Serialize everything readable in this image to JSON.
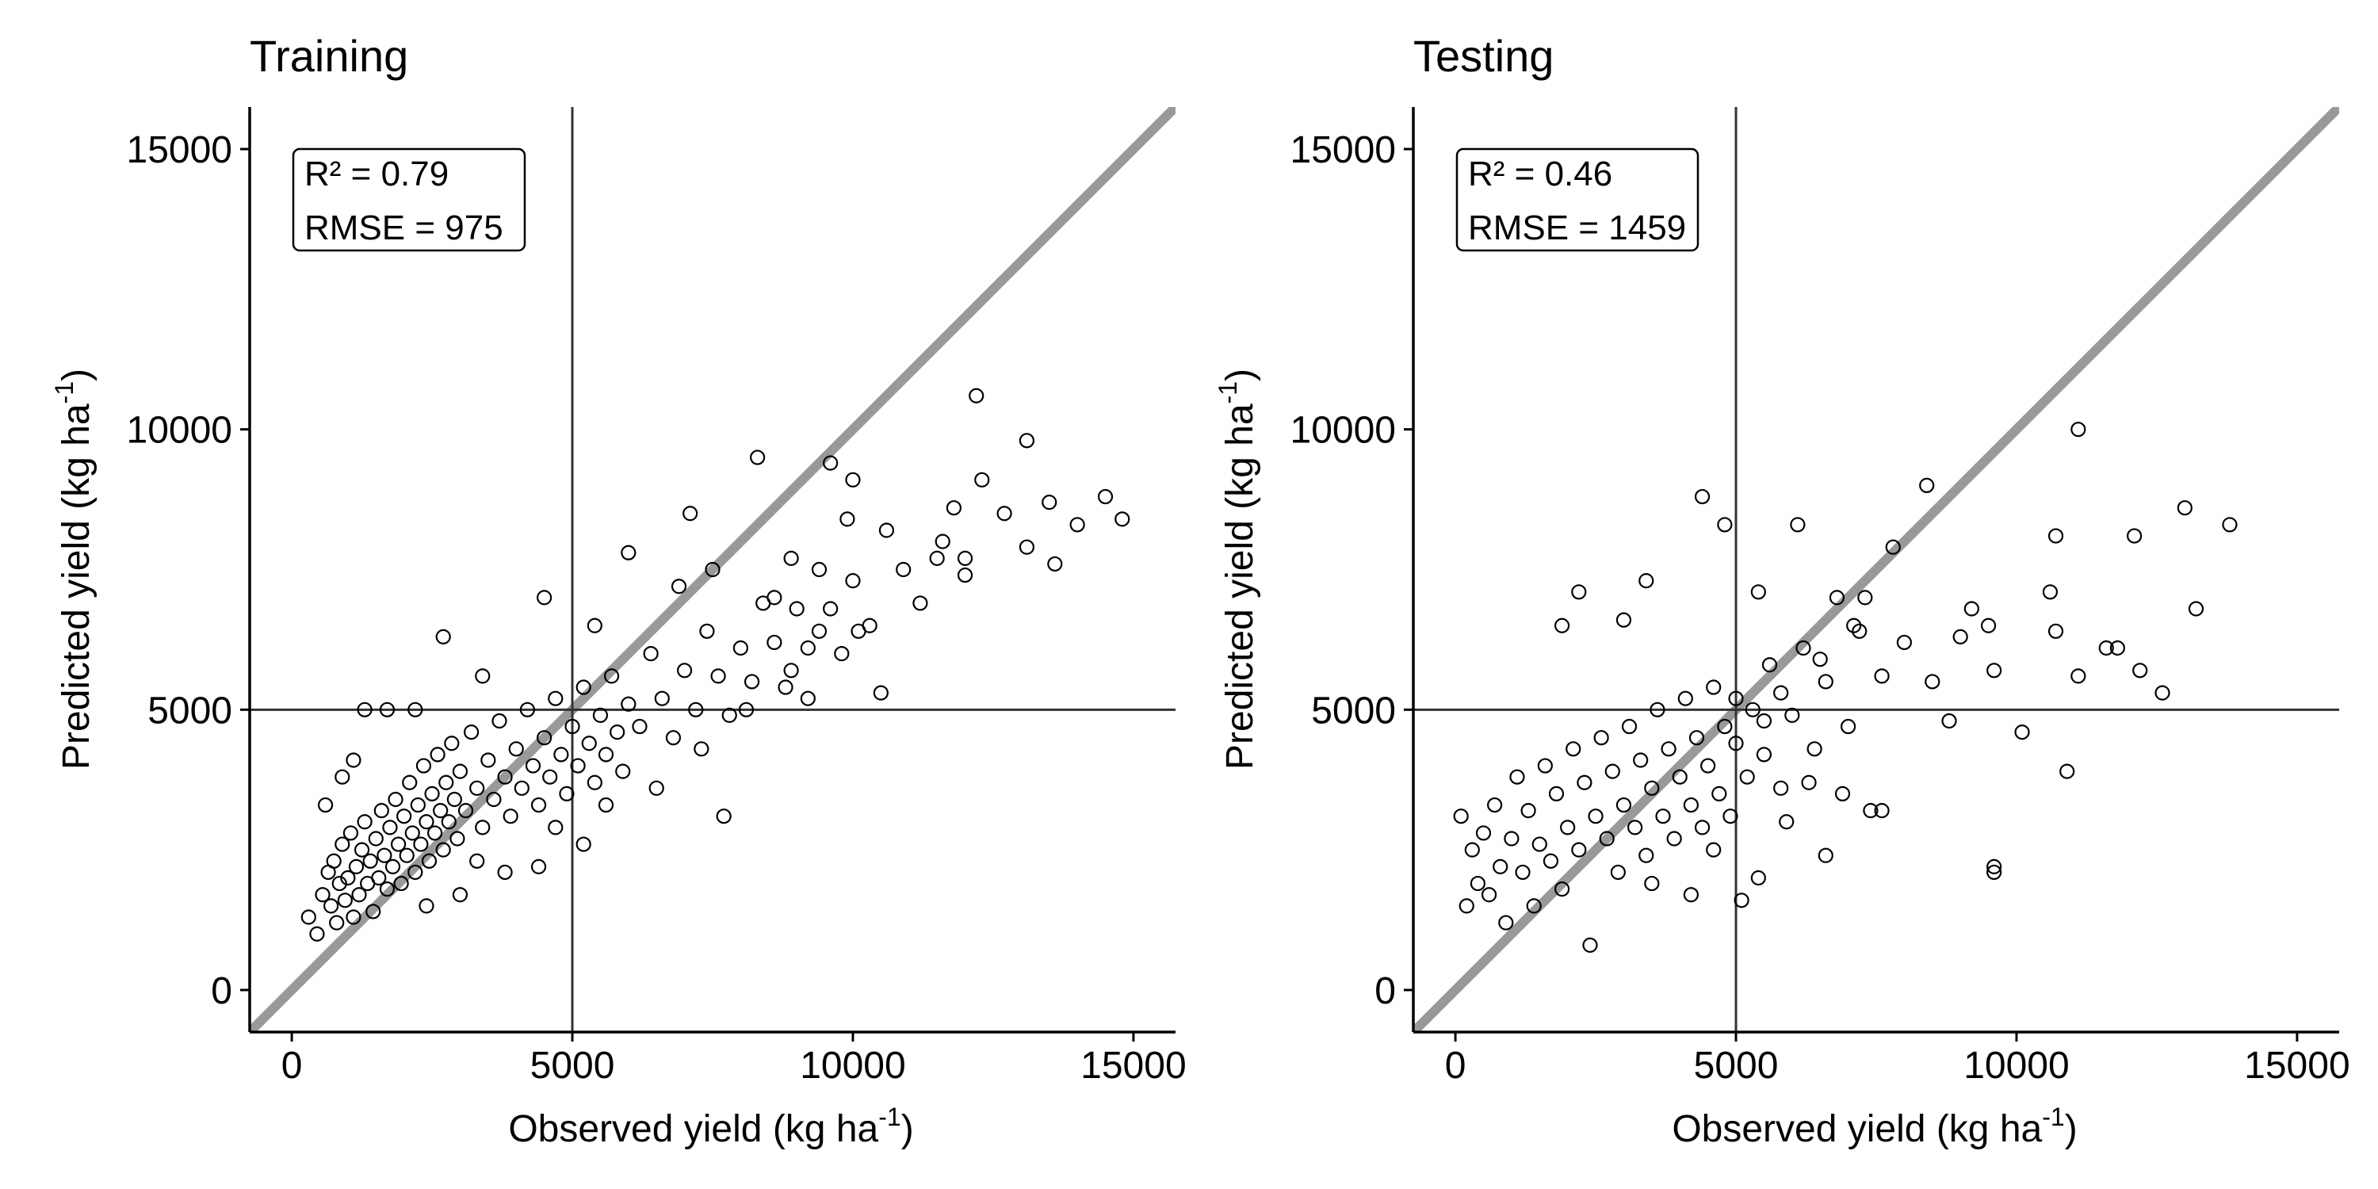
{
  "figure": {
    "background": "#ffffff",
    "identity_line_color": "#999999",
    "reference_line_color": "#333333",
    "point_stroke": "#000000"
  },
  "chart_data": [
    {
      "type": "scatter",
      "title": "Training",
      "xlabel": {
        "main": "Observed yield (kg ha",
        "sup": "-1",
        "close": ")"
      },
      "ylabel": {
        "main": "Predicted yield (kg ha",
        "sup": "-1",
        "close": ")"
      },
      "xlim": [
        -750,
        15750
      ],
      "ylim": [
        -750,
        15750
      ],
      "xticks": [
        0,
        5000,
        10000,
        15000
      ],
      "yticks": [
        0,
        5000,
        10000,
        15000
      ],
      "xtick_labels": [
        "0",
        "5000",
        "10000",
        "15000"
      ],
      "ytick_labels": [
        "0",
        "5000",
        "10000",
        "15000"
      ],
      "reference_lines": {
        "x": 5000,
        "y": 5000
      },
      "identity_line": true,
      "stats": [
        "R² = 0.79",
        "RMSE = 975"
      ],
      "stats_position": "top-left",
      "grid": false,
      "points": [
        [
          300,
          1300
        ],
        [
          450,
          1000
        ],
        [
          550,
          1700
        ],
        [
          650,
          2100
        ],
        [
          700,
          1500
        ],
        [
          750,
          2300
        ],
        [
          800,
          1200
        ],
        [
          850,
          1900
        ],
        [
          900,
          2600
        ],
        [
          950,
          1600
        ],
        [
          1000,
          2000
        ],
        [
          1050,
          2800
        ],
        [
          1100,
          1300
        ],
        [
          1150,
          2200
        ],
        [
          1200,
          1700
        ],
        [
          1250,
          2500
        ],
        [
          1300,
          3000
        ],
        [
          1350,
          1900
        ],
        [
          1400,
          2300
        ],
        [
          1450,
          1400
        ],
        [
          1500,
          2700
        ],
        [
          1550,
          2000
        ],
        [
          1600,
          3200
        ],
        [
          1650,
          2400
        ],
        [
          1700,
          1800
        ],
        [
          1750,
          2900
        ],
        [
          1800,
          2200
        ],
        [
          1850,
          3400
        ],
        [
          1900,
          2600
        ],
        [
          1950,
          1900
        ],
        [
          2000,
          3100
        ],
        [
          2050,
          2400
        ],
        [
          2100,
          3700
        ],
        [
          2150,
          2800
        ],
        [
          2200,
          2100
        ],
        [
          2250,
          3300
        ],
        [
          2300,
          2600
        ],
        [
          2350,
          4000
        ],
        [
          2400,
          3000
        ],
        [
          2450,
          2300
        ],
        [
          2500,
          3500
        ],
        [
          2550,
          2800
        ],
        [
          2600,
          4200
        ],
        [
          2650,
          3200
        ],
        [
          2700,
          2500
        ],
        [
          2750,
          3700
        ],
        [
          2800,
          3000
        ],
        [
          2850,
          4400
        ],
        [
          2900,
          3400
        ],
        [
          2950,
          2700
        ],
        [
          3000,
          3900
        ],
        [
          3100,
          3200
        ],
        [
          3200,
          4600
        ],
        [
          3300,
          3600
        ],
        [
          3400,
          2900
        ],
        [
          3500,
          4100
        ],
        [
          3600,
          3400
        ],
        [
          3700,
          4800
        ],
        [
          3800,
          3800
        ],
        [
          3900,
          3100
        ],
        [
          4000,
          4300
        ],
        [
          4100,
          3600
        ],
        [
          4200,
          5000
        ],
        [
          4300,
          4000
        ],
        [
          4400,
          3300
        ],
        [
          4500,
          4500
        ],
        [
          4600,
          3800
        ],
        [
          4700,
          5200
        ],
        [
          4800,
          4200
        ],
        [
          4900,
          3500
        ],
        [
          5000,
          4700
        ],
        [
          5100,
          4000
        ],
        [
          5200,
          5400
        ],
        [
          5300,
          4400
        ],
        [
          5400,
          3700
        ],
        [
          5500,
          4900
        ],
        [
          5600,
          4200
        ],
        [
          5700,
          5600
        ],
        [
          5800,
          4600
        ],
        [
          5900,
          3900
        ],
        [
          6000,
          5100
        ],
        [
          6200,
          4700
        ],
        [
          6400,
          6000
        ],
        [
          6600,
          5200
        ],
        [
          6800,
          4500
        ],
        [
          7000,
          5700
        ],
        [
          7200,
          5000
        ],
        [
          7400,
          6400
        ],
        [
          7600,
          5600
        ],
        [
          7800,
          4900
        ],
        [
          8000,
          6100
        ],
        [
          8200,
          5500
        ],
        [
          8400,
          6900
        ],
        [
          8600,
          6200
        ],
        [
          8800,
          5400
        ],
        [
          9000,
          6800
        ],
        [
          9200,
          6100
        ],
        [
          9400,
          7500
        ],
        [
          9600,
          6800
        ],
        [
          9800,
          6000
        ],
        [
          10000,
          7300
        ],
        [
          10300,
          6500
        ],
        [
          10600,
          8200
        ],
        [
          10900,
          7500
        ],
        [
          11200,
          6900
        ],
        [
          11600,
          8000
        ],
        [
          12000,
          7400
        ],
        [
          12300,
          9100
        ],
        [
          12700,
          8500
        ],
        [
          13100,
          7900
        ],
        [
          13500,
          8700
        ],
        [
          14000,
          8300
        ],
        [
          14500,
          8800
        ],
        [
          14800,
          8400
        ],
        [
          2200,
          5000
        ],
        [
          2700,
          6300
        ],
        [
          3400,
          5600
        ],
        [
          4500,
          7000
        ],
        [
          5400,
          6500
        ],
        [
          6000,
          7800
        ],
        [
          7100,
          8500
        ],
        [
          8300,
          9500
        ],
        [
          9600,
          9400
        ],
        [
          10000,
          9100
        ],
        [
          12200,
          10600
        ],
        [
          13100,
          9800
        ],
        [
          7700,
          3100
        ],
        [
          9200,
          5200
        ],
        [
          10500,
          5300
        ],
        [
          5200,
          2600
        ],
        [
          3300,
          2300
        ],
        [
          4400,
          2200
        ],
        [
          1300,
          5000
        ],
        [
          1700,
          5000
        ],
        [
          900,
          3800
        ],
        [
          600,
          3300
        ],
        [
          1100,
          4100
        ],
        [
          2400,
          1500
        ],
        [
          3000,
          1700
        ],
        [
          3800,
          2100
        ],
        [
          4700,
          2900
        ],
        [
          5600,
          3300
        ],
        [
          6500,
          3600
        ],
        [
          7300,
          4300
        ],
        [
          8100,
          5000
        ],
        [
          8900,
          5700
        ],
        [
          9400,
          6400
        ],
        [
          10100,
          6400
        ],
        [
          11500,
          7700
        ],
        [
          12000,
          7700
        ],
        [
          13600,
          7600
        ],
        [
          8900,
          7700
        ],
        [
          9900,
          8400
        ],
        [
          11800,
          8600
        ],
        [
          6900,
          7200
        ],
        [
          7500,
          7500
        ],
        [
          8600,
          7000
        ]
      ]
    },
    {
      "type": "scatter",
      "title": "Testing",
      "xlabel": {
        "main": "Observed yield (kg ha",
        "sup": "-1",
        "close": ")"
      },
      "ylabel": {
        "main": "Predicted yield (kg ha",
        "sup": "-1",
        "close": ")"
      },
      "xlim": [
        -750,
        15750
      ],
      "ylim": [
        -750,
        15750
      ],
      "xticks": [
        0,
        5000,
        10000,
        15000
      ],
      "yticks": [
        0,
        5000,
        10000,
        15000
      ],
      "xtick_labels": [
        "0",
        "5000",
        "10000",
        "15000"
      ],
      "ytick_labels": [
        "0",
        "5000",
        "10000",
        "15000"
      ],
      "reference_lines": {
        "x": 5000,
        "y": 5000
      },
      "identity_line": true,
      "stats": [
        "R² = 0.46",
        "RMSE = 1459"
      ],
      "stats_position": "top-left",
      "grid": false,
      "points": [
        [
          100,
          3100
        ],
        [
          200,
          1500
        ],
        [
          300,
          2500
        ],
        [
          400,
          1900
        ],
        [
          500,
          2800
        ],
        [
          600,
          1700
        ],
        [
          700,
          3300
        ],
        [
          800,
          2200
        ],
        [
          900,
          1200
        ],
        [
          1000,
          2700
        ],
        [
          1100,
          3800
        ],
        [
          1200,
          2100
        ],
        [
          1300,
          3200
        ],
        [
          1400,
          1500
        ],
        [
          1500,
          2600
        ],
        [
          1600,
          4000
        ],
        [
          1700,
          2300
        ],
        [
          1800,
          3500
        ],
        [
          1900,
          1800
        ],
        [
          2000,
          2900
        ],
        [
          2100,
          4300
        ],
        [
          2200,
          2500
        ],
        [
          2300,
          3700
        ],
        [
          2400,
          800
        ],
        [
          2500,
          3100
        ],
        [
          2600,
          4500
        ],
        [
          2700,
          2700
        ],
        [
          2800,
          3900
        ],
        [
          2900,
          2100
        ],
        [
          3000,
          3300
        ],
        [
          3100,
          4700
        ],
        [
          3200,
          2900
        ],
        [
          3300,
          4100
        ],
        [
          3400,
          2400
        ],
        [
          3500,
          3600
        ],
        [
          3600,
          5000
        ],
        [
          3700,
          3100
        ],
        [
          3800,
          4300
        ],
        [
          3900,
          2700
        ],
        [
          4000,
          3800
        ],
        [
          4100,
          5200
        ],
        [
          4200,
          3300
        ],
        [
          4300,
          4500
        ],
        [
          4400,
          2900
        ],
        [
          4500,
          4000
        ],
        [
          4600,
          5400
        ],
        [
          4700,
          3500
        ],
        [
          4800,
          4700
        ],
        [
          4900,
          3100
        ],
        [
          5000,
          5200
        ],
        [
          5100,
          1600
        ],
        [
          5200,
          3800
        ],
        [
          5300,
          5000
        ],
        [
          5400,
          2000
        ],
        [
          5500,
          4200
        ],
        [
          5600,
          5800
        ],
        [
          5800,
          3600
        ],
        [
          6000,
          4900
        ],
        [
          6200,
          6100
        ],
        [
          6400,
          4300
        ],
        [
          6600,
          5500
        ],
        [
          6800,
          7000
        ],
        [
          7000,
          4700
        ],
        [
          7200,
          6400
        ],
        [
          7400,
          3200
        ],
        [
          7600,
          5600
        ],
        [
          7800,
          7900
        ],
        [
          8000,
          6200
        ],
        [
          8400,
          9000
        ],
        [
          8800,
          4800
        ],
        [
          9200,
          6800
        ],
        [
          9600,
          5700
        ],
        [
          9600,
          2100
        ],
        [
          9600,
          2200
        ],
        [
          10100,
          4600
        ],
        [
          10600,
          7100
        ],
        [
          10700,
          8100
        ],
        [
          10900,
          3900
        ],
        [
          11100,
          5600
        ],
        [
          11100,
          10000
        ],
        [
          11600,
          6100
        ],
        [
          12100,
          8100
        ],
        [
          12600,
          5300
        ],
        [
          13000,
          8600
        ],
        [
          13200,
          6800
        ],
        [
          13800,
          8300
        ],
        [
          2200,
          7100
        ],
        [
          3400,
          7300
        ],
        [
          4400,
          8800
        ],
        [
          4800,
          8300
        ],
        [
          6100,
          8300
        ],
        [
          1900,
          6500
        ],
        [
          3000,
          6600
        ],
        [
          5400,
          7100
        ],
        [
          7300,
          7000
        ],
        [
          9000,
          6300
        ],
        [
          10700,
          6400
        ],
        [
          11800,
          6100
        ],
        [
          12200,
          5700
        ],
        [
          3500,
          1900
        ],
        [
          4200,
          1700
        ],
        [
          6600,
          2400
        ],
        [
          7600,
          3200
        ],
        [
          8500,
          5500
        ],
        [
          9500,
          6500
        ],
        [
          6300,
          3700
        ],
        [
          6900,
          3500
        ],
        [
          5900,
          3000
        ],
        [
          4600,
          2500
        ],
        [
          5000,
          4400
        ],
        [
          5500,
          4800
        ],
        [
          5800,
          5300
        ],
        [
          6500,
          5900
        ],
        [
          7100,
          6500
        ]
      ]
    }
  ]
}
